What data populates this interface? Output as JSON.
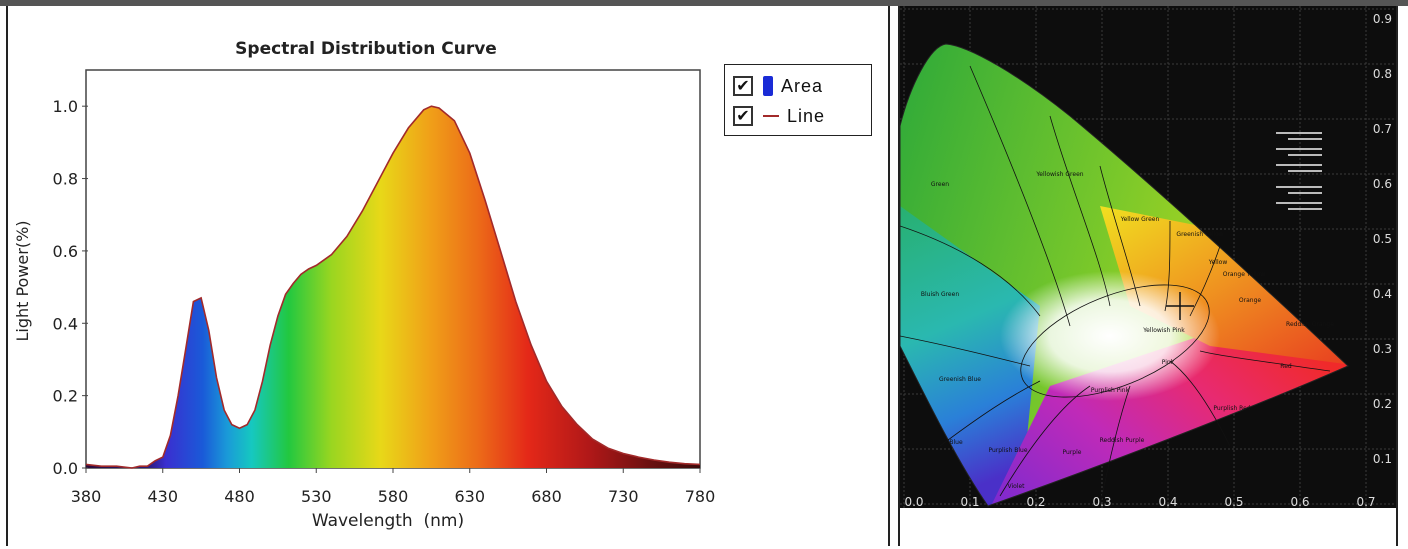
{
  "chart_data": [
    {
      "type": "area",
      "title": "Spectral Distribution Curve",
      "xlabel": "Wavelength  (nm)",
      "ylabel": "Light Power(%)",
      "xlim": [
        380,
        780
      ],
      "ylim": [
        0,
        1.1
      ],
      "x_ticks": [
        "380",
        "430",
        "480",
        "530",
        "580",
        "630",
        "680",
        "730",
        "780"
      ],
      "y_ticks": [
        "0.0",
        "0.2",
        "0.4",
        "0.6",
        "0.8",
        "1.0"
      ],
      "grid": false,
      "legend_position": "top-right",
      "legend": [
        {
          "label": "Area",
          "checked": true,
          "color": "#1a2bd6"
        },
        {
          "label": "Line",
          "checked": true,
          "color": "#a22a2a"
        }
      ],
      "series": [
        {
          "x": [
            380,
            390,
            400,
            410,
            415,
            420,
            425,
            430,
            435,
            440,
            445,
            450,
            455,
            460,
            465,
            470,
            475,
            480,
            485,
            490,
            495,
            500,
            505,
            510,
            515,
            520,
            525,
            530,
            540,
            550,
            560,
            570,
            580,
            590,
            600,
            605,
            610,
            620,
            630,
            640,
            650,
            660,
            670,
            680,
            690,
            700,
            710,
            720,
            730,
            740,
            750,
            760,
            770,
            780
          ],
          "y": [
            0.01,
            0.005,
            0.005,
            0.0,
            0.005,
            0.005,
            0.02,
            0.03,
            0.09,
            0.2,
            0.33,
            0.46,
            0.47,
            0.38,
            0.25,
            0.16,
            0.12,
            0.11,
            0.12,
            0.16,
            0.24,
            0.34,
            0.42,
            0.48,
            0.51,
            0.535,
            0.55,
            0.56,
            0.59,
            0.64,
            0.71,
            0.79,
            0.87,
            0.94,
            0.99,
            1.0,
            0.995,
            0.96,
            0.87,
            0.74,
            0.6,
            0.46,
            0.34,
            0.24,
            0.17,
            0.12,
            0.08,
            0.055,
            0.04,
            0.03,
            0.022,
            0.016,
            0.012,
            0.01
          ]
        }
      ]
    },
    {
      "type": "diagram",
      "x_ticks": [
        "0.0",
        "0.1",
        "0.2",
        "0.3",
        "0.4",
        "0.5",
        "0.6",
        "0.7"
      ],
      "y_ticks": [
        "0.1",
        "0.2",
        "0.3",
        "0.4",
        "0.5",
        "0.6",
        "0.7",
        "0.8",
        "0.9"
      ],
      "region_labels": [
        "Green",
        "Yellowish Green",
        "Yellow Green",
        "Greenish Yellow",
        "Yellow",
        "Orange Yellow",
        "Orange",
        "Reddish Orange",
        "Red",
        "Bluish Green",
        "Greenish Blue",
        "Blue",
        "Purplish Blue",
        "Violet",
        "Purple",
        "Reddish Purple",
        "Purplish Pink",
        "Pink",
        "Purplish Red",
        "Yellowish Pink"
      ]
    }
  ]
}
